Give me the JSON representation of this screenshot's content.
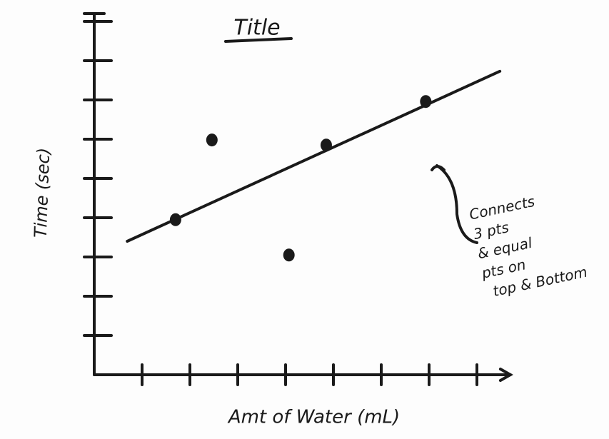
{
  "chart_data": {
    "type": "scatter",
    "title": "Title",
    "x_label": "Amt of Water (mL)",
    "y_label": "Time (sec)",
    "x": [
      1.7,
      2.46,
      4.07,
      4.85,
      6.93
    ],
    "values": [
      3.95,
      5.98,
      3.05,
      5.85,
      6.96
    ],
    "color": "#1a1a1a",
    "trendline": {
      "x": [
        0.69,
        8.48
      ],
      "values": [
        3.4,
        7.73
      ]
    },
    "xlim": [
      0,
      8.7
    ],
    "ylim": [
      0,
      9.2
    ],
    "xticks": [
      1,
      2,
      3,
      4,
      5,
      6,
      7,
      8
    ],
    "yticks": [
      1,
      2,
      3,
      4,
      5,
      6,
      7,
      8,
      9
    ],
    "annotation": [
      "Connects",
      "3 pts",
      "& equal",
      "pts on",
      "top & Bottom"
    ]
  }
}
